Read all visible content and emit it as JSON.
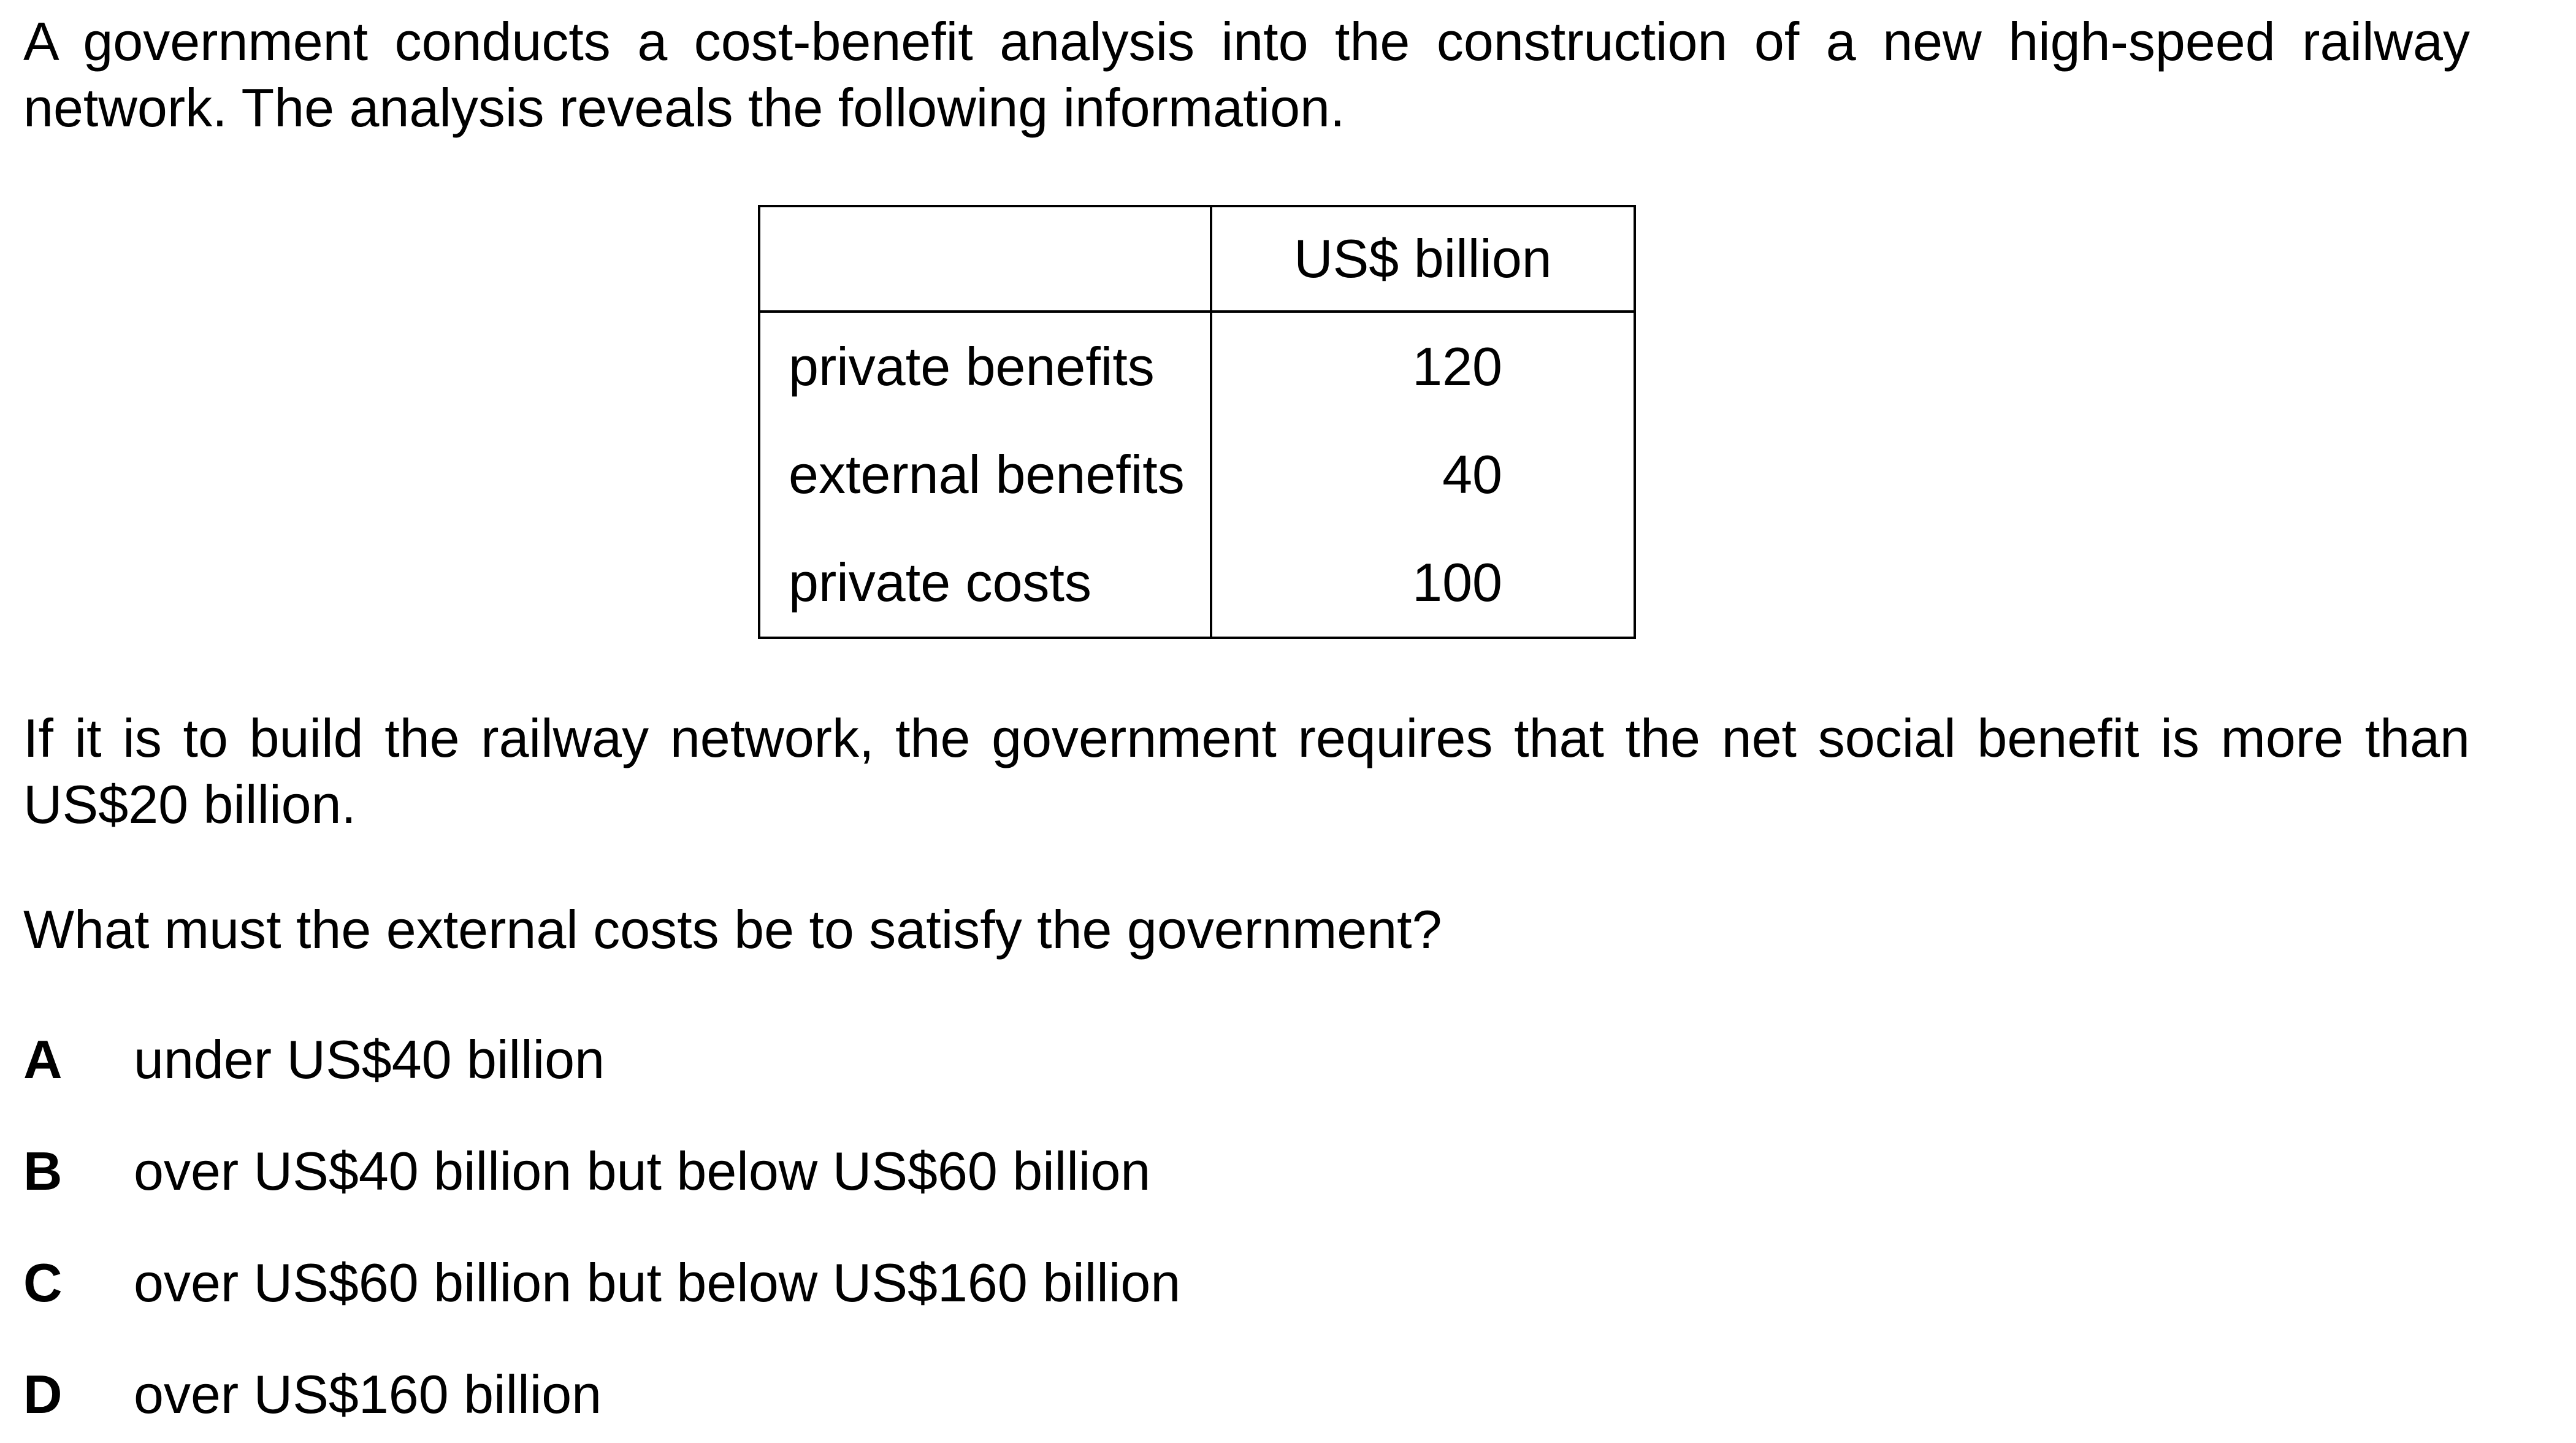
{
  "intro": "A government conducts a cost-benefit analysis into the construction of a new high-speed railway network. The analysis reveals the following information.",
  "table": {
    "header_blank": "",
    "header_unit": "US$ billion",
    "rows": [
      {
        "label": "private benefits",
        "value": "120"
      },
      {
        "label": "external benefits",
        "value": "40"
      },
      {
        "label": "private costs",
        "value": "100"
      }
    ]
  },
  "requirement": "If it is to build the railway network, the government requires that the net social benefit is more than US$20 billion.",
  "question": "What must the external costs be to satisfy the government?",
  "options": [
    {
      "letter": "A",
      "text": "under US$40 billion"
    },
    {
      "letter": "B",
      "text": "over US$40 billion but below US$60 billion"
    },
    {
      "letter": "C",
      "text": "over US$60 billion but below US$160 billion"
    },
    {
      "letter": "D",
      "text": "over US$160 billion"
    }
  ]
}
